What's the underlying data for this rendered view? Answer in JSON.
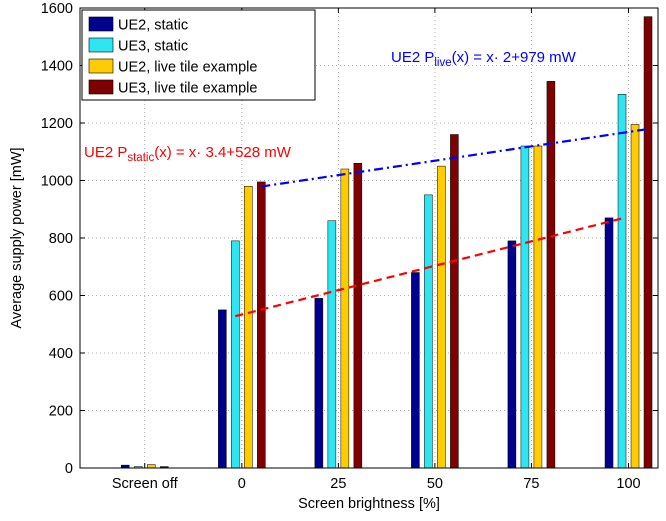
{
  "chart_data": {
    "type": "bar",
    "xlabel": "Screen brightness [%]",
    "ylabel": "Average supply power [mW]",
    "ylim": [
      0,
      1600
    ],
    "yticks": [
      0,
      200,
      400,
      600,
      800,
      1000,
      1200,
      1400,
      1600
    ],
    "grid": true,
    "legend_placement": "top-left",
    "categories": [
      "Screen off",
      "0",
      "25",
      "50",
      "75",
      "100"
    ],
    "series": [
      {
        "name": "UE2, static",
        "color": "#00008f",
        "values": [
          10,
          550,
          590,
          680,
          790,
          870
        ]
      },
      {
        "name": "UE3, static",
        "color": "#2ee6f2",
        "values": [
          5,
          790,
          860,
          950,
          1120,
          1300
        ]
      },
      {
        "name": "UE2, live tile example",
        "color": "#ffcc00",
        "values": [
          12,
          980,
          1040,
          1050,
          1120,
          1195
        ]
      },
      {
        "name": "UE3, live tile example",
        "color": "#7f0000",
        "values": [
          5,
          995,
          1060,
          1160,
          1345,
          1570
        ]
      }
    ],
    "fit_lines": [
      {
        "label_prefix": "UE2 P",
        "label_sub": "live",
        "label_suffix": "(x) = x· 2+979 mW",
        "color": "#0000ff",
        "style": "dash-dot",
        "slope": 2,
        "intercept": 979
      },
      {
        "label_prefix": "UE2 P",
        "label_sub": "static",
        "label_suffix": "(x) = x· 3.4+528 mW",
        "color": "#ff0000",
        "style": "dashed",
        "slope": 3.4,
        "intercept": 528
      }
    ]
  }
}
